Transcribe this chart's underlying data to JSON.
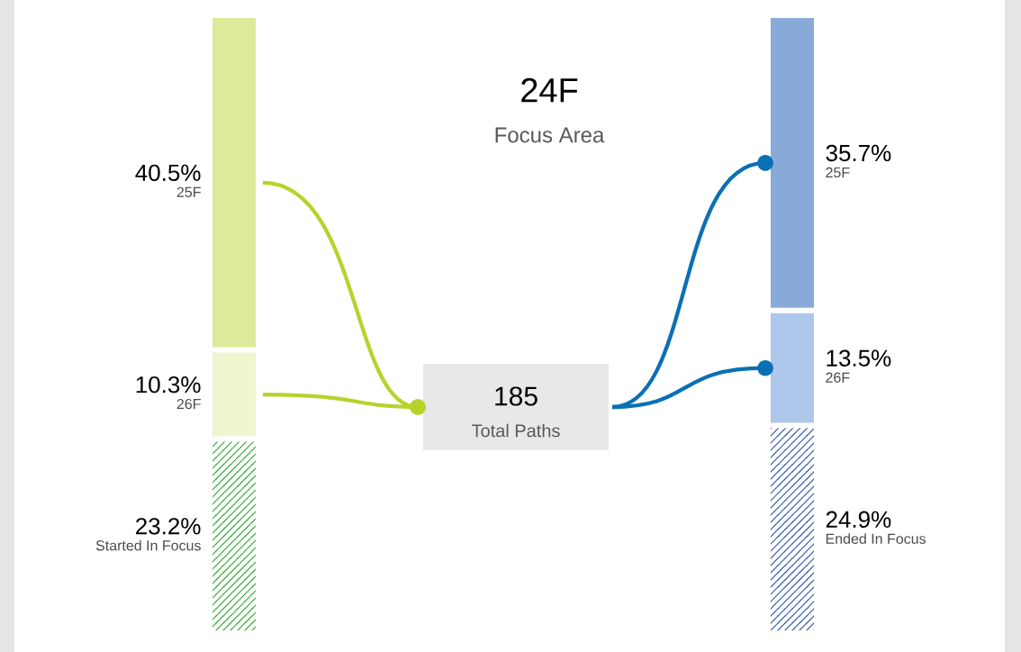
{
  "chart_data": {
    "type": "other",
    "title": "24F",
    "subtitle": "Focus Area",
    "categories": [
      "25F",
      "26F",
      "Started In Focus",
      "25F",
      "26F",
      "Ended In Focus"
    ],
    "values": [
      40.5,
      10.3,
      23.2,
      35.7,
      13.5,
      24.9
    ],
    "value_labels": [
      "40.5%",
      "10.3%",
      "23.2%",
      "35.7%",
      "13.5%",
      "24.9%"
    ],
    "colors": [
      "#dfe99a",
      "#eef5cf",
      "#2aa52a",
      "#88aad8",
      "#aec6ea",
      "#2a4faa"
    ],
    "annotations": [
      "185",
      "Total Paths"
    ]
  }
}
